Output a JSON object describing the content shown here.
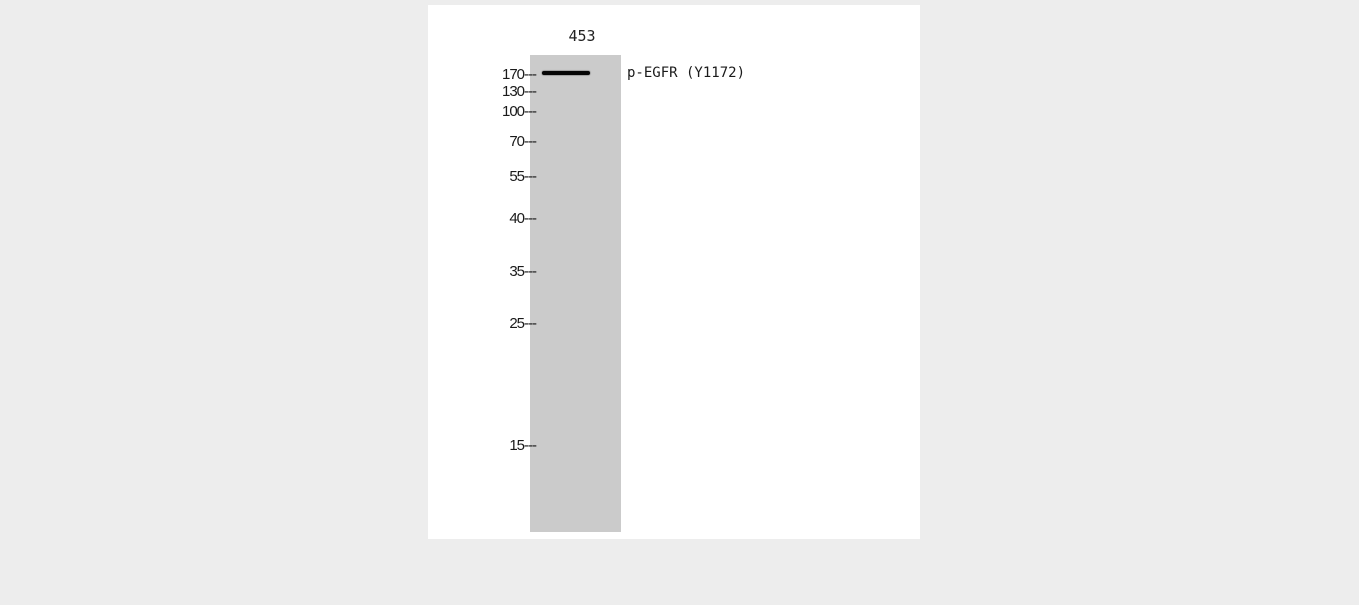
{
  "blot": {
    "lane_label": "453",
    "target_label": "p-EGFR (Y1172)",
    "markers": [
      {
        "label": "170---",
        "kda": 170
      },
      {
        "label": "130---",
        "kda": 130
      },
      {
        "label": "100---",
        "kda": 100
      },
      {
        "label": "70---",
        "kda": 70
      },
      {
        "label": "55---",
        "kda": 55
      },
      {
        "label": "40---",
        "kda": 40
      },
      {
        "label": "35---",
        "kda": 35
      },
      {
        "label": "25---",
        "kda": 25
      },
      {
        "label": "15---",
        "kda": 15
      }
    ],
    "colors": {
      "background": "#ededed",
      "panel": "#ffffff",
      "lane": "#cbcbcb",
      "band": "#050505"
    }
  }
}
